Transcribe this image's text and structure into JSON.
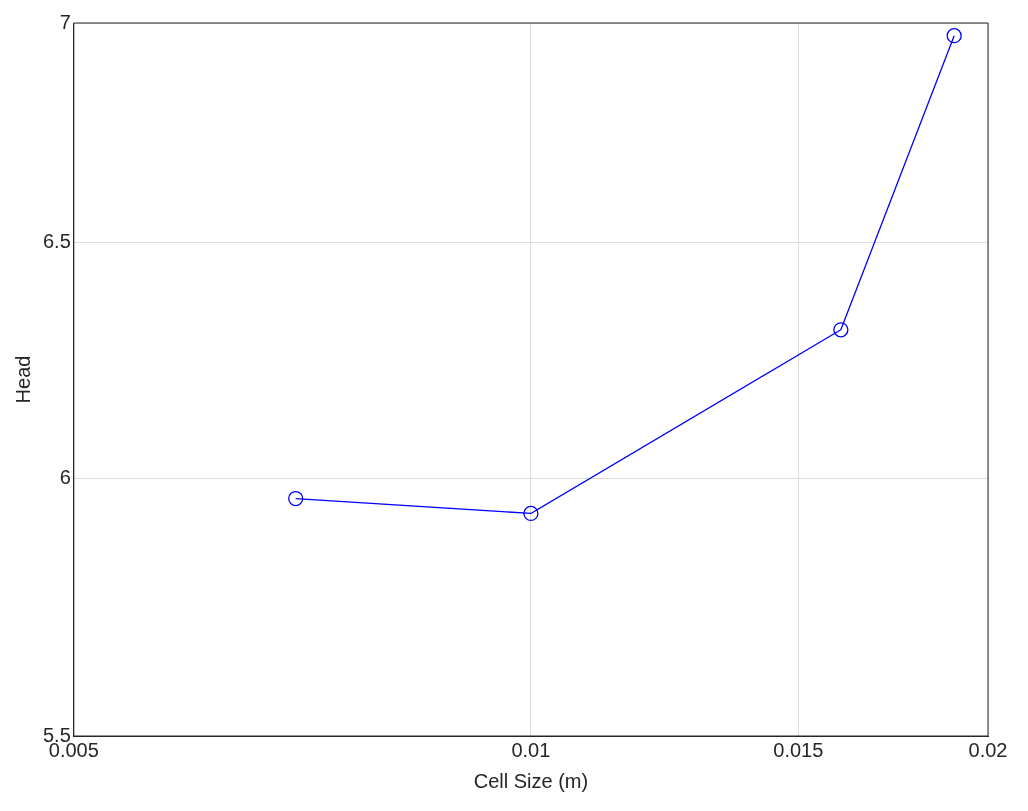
{
  "chart_data": {
    "type": "line",
    "xlabel": "Cell Size (m)",
    "ylabel": "Head",
    "x": [
      0.007,
      0.01,
      0.016,
      0.019
    ],
    "series": [
      {
        "color": "#0000ff",
        "values": [
          5.96,
          5.93,
          6.31,
          6.97
        ]
      }
    ],
    "log": "xy",
    "xlim": [
      0.005,
      0.02
    ],
    "xticks": [
      0.005,
      0.01,
      0.015,
      0.02
    ],
    "ylim": [
      5.5,
      7
    ],
    "yticks": [
      5.5,
      6,
      6.5,
      7
    ],
    "grid": true,
    "marker": "circle",
    "line_style": "solid",
    "legend": false
  }
}
